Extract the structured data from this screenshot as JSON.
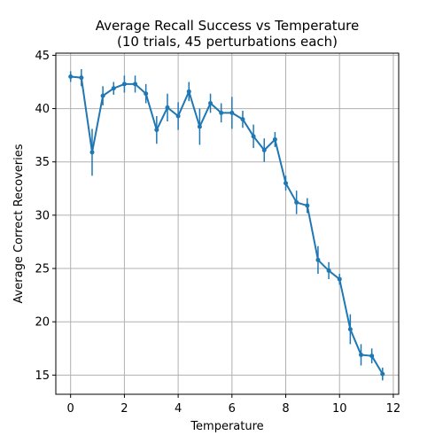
{
  "chart_data": {
    "type": "line",
    "title": "Average Recall Success vs Temperature",
    "subtitle": "(10 trials, 45 perturbations each)",
    "xlabel": "Temperature",
    "ylabel": "Average Correct Recoveries",
    "xlim": [
      -0.55,
      12.2
    ],
    "ylim": [
      13.2,
      45.2
    ],
    "xticks": [
      0,
      2,
      4,
      6,
      8,
      10,
      12
    ],
    "yticks": [
      15,
      20,
      25,
      30,
      35,
      40,
      45
    ],
    "grid": true,
    "legend": "none",
    "series": [
      {
        "color": "#1f77b4",
        "marker": "circle",
        "x": [
          0.0,
          0.4,
          0.8,
          1.2,
          1.6,
          2.0,
          2.4,
          2.8,
          3.2,
          3.6,
          4.0,
          4.4,
          4.8,
          5.2,
          5.6,
          6.0,
          6.4,
          6.8,
          7.2,
          7.6,
          8.0,
          8.4,
          8.8,
          9.2,
          9.6,
          10.0,
          10.4,
          10.8,
          11.2,
          11.6
        ],
        "y": [
          43.0,
          42.9,
          35.9,
          41.2,
          41.9,
          42.3,
          42.3,
          41.4,
          38.0,
          40.1,
          39.3,
          41.6,
          38.3,
          40.5,
          39.6,
          39.6,
          39.0,
          37.4,
          36.1,
          37.1,
          33.0,
          31.2,
          30.9,
          25.8,
          24.8,
          24.0,
          19.3,
          16.9,
          16.8,
          15.1
        ],
        "yerr": [
          0.5,
          0.8,
          2.2,
          0.9,
          0.6,
          0.8,
          0.8,
          0.9,
          1.3,
          1.3,
          1.3,
          0.9,
          1.7,
          0.9,
          0.9,
          1.5,
          0.8,
          1.1,
          1.1,
          0.7,
          0.7,
          1.1,
          0.7,
          1.3,
          0.8,
          0.5,
          1.4,
          1.0,
          0.7,
          0.6
        ]
      }
    ]
  }
}
